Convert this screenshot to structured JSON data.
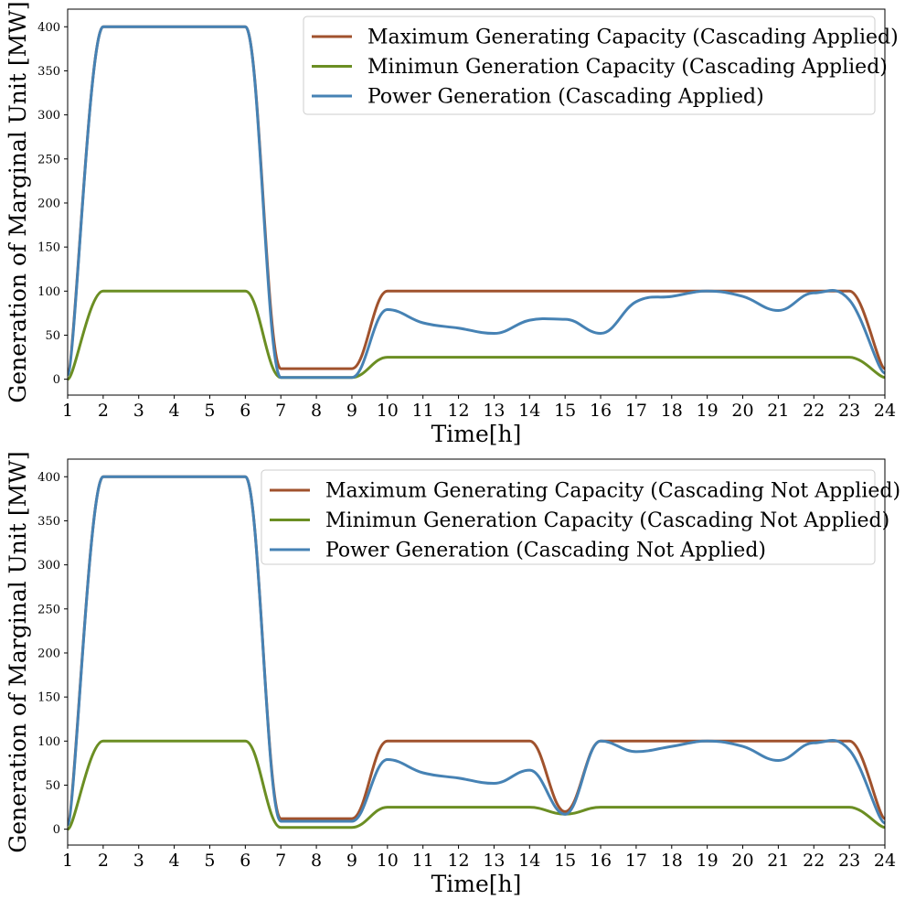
{
  "chart_data": [
    {
      "type": "line",
      "xlabel": "Time[h]",
      "ylabel": "Generation of Marginal Unit [MW]",
      "xlim": [
        1,
        24
      ],
      "ylim": [
        -18,
        420
      ],
      "xticks": [
        "1",
        "2",
        "3",
        "4",
        "5",
        "6",
        "7",
        "8",
        "9",
        "10",
        "11",
        "12",
        "13",
        "14",
        "15",
        "16",
        "17",
        "18",
        "19",
        "20",
        "21",
        "22",
        "23",
        "24"
      ],
      "yticks": [
        "0",
        "50",
        "100",
        "150",
        "200",
        "250",
        "300",
        "350",
        "400"
      ],
      "legend_position": "top-right",
      "grid": false,
      "x": [
        1,
        2,
        3,
        4,
        5,
        6,
        7,
        8,
        9,
        10,
        11,
        12,
        13,
        14,
        15,
        16,
        17,
        18,
        19,
        20,
        21,
        22,
        23,
        24
      ],
      "series": [
        {
          "name": "Maximum Generating Capacity (Cascading Applied)",
          "color": "#a0522d",
          "values": [
            8,
            400,
            400,
            400,
            400,
            400,
            12,
            12,
            12,
            100,
            100,
            100,
            100,
            100,
            100,
            100,
            100,
            100,
            100,
            100,
            100,
            100,
            100,
            12
          ]
        },
        {
          "name": "Minimun Generation Capacity (Cascading Applied)",
          "color": "#6b8e23",
          "values": [
            0,
            100,
            100,
            100,
            100,
            100,
            2,
            2,
            2,
            25,
            25,
            25,
            25,
            25,
            25,
            25,
            25,
            25,
            25,
            25,
            25,
            25,
            25,
            2
          ]
        },
        {
          "name": "Power Generation (Cascading Applied)",
          "color": "#4682b4",
          "values": [
            5,
            400,
            400,
            400,
            400,
            400,
            2,
            2,
            2,
            79,
            64,
            58,
            52,
            67,
            68,
            52,
            88,
            94,
            100,
            94,
            78,
            98,
            90,
            7
          ]
        }
      ]
    },
    {
      "type": "line",
      "xlabel": "Time[h]",
      "ylabel": "Generation of Marginal Unit [MW]",
      "xlim": [
        1,
        24
      ],
      "ylim": [
        -18,
        420
      ],
      "xticks": [
        "1",
        "2",
        "3",
        "4",
        "5",
        "6",
        "7",
        "8",
        "9",
        "10",
        "11",
        "12",
        "13",
        "14",
        "15",
        "16",
        "17",
        "18",
        "19",
        "20",
        "21",
        "22",
        "23",
        "24"
      ],
      "yticks": [
        "0",
        "50",
        "100",
        "150",
        "200",
        "250",
        "300",
        "350",
        "400"
      ],
      "legend_position": "top-right",
      "grid": false,
      "x": [
        1,
        2,
        3,
        4,
        5,
        6,
        7,
        8,
        9,
        10,
        11,
        12,
        13,
        14,
        15,
        16,
        17,
        18,
        19,
        20,
        21,
        22,
        23,
        24
      ],
      "series": [
        {
          "name": "Maximum Generating Capacity (Cascading Not Applied)",
          "color": "#a0522d",
          "values": [
            8,
            400,
            400,
            400,
            400,
            400,
            12,
            12,
            12,
            100,
            100,
            100,
            100,
            100,
            20,
            100,
            100,
            100,
            100,
            100,
            100,
            100,
            100,
            12
          ]
        },
        {
          "name": "Minimun Generation Capacity (Cascading Not Applied)",
          "color": "#6b8e23",
          "values": [
            0,
            100,
            100,
            100,
            100,
            100,
            2,
            2,
            2,
            25,
            25,
            25,
            25,
            25,
            17,
            25,
            25,
            25,
            25,
            25,
            25,
            25,
            25,
            2
          ]
        },
        {
          "name": "Power Generation (Cascading Not Applied)",
          "color": "#4682b4",
          "values": [
            5,
            400,
            400,
            400,
            400,
            400,
            9,
            9,
            9,
            79,
            64,
            58,
            52,
            67,
            17,
            100,
            88,
            94,
            100,
            94,
            78,
            98,
            90,
            7
          ]
        }
      ]
    }
  ]
}
